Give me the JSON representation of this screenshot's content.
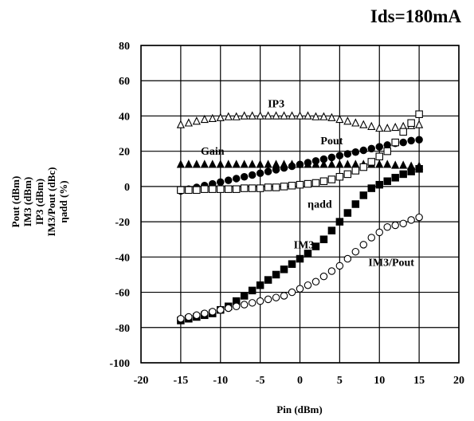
{
  "chart_data": {
    "type": "scatter",
    "title": "Ids=180mA",
    "xlabel": "Pin (dBm)",
    "ylabel_lines": [
      "Pout (dBm)",
      "IM3 (dBm)",
      "IP3 (dBm)",
      "IM3/Pout (dBc)",
      "ηadd (%)"
    ],
    "xlim": [
      -20,
      20
    ],
    "ylim": [
      -100,
      80
    ],
    "xticks": [
      -20,
      -15,
      -10,
      -5,
      0,
      5,
      10,
      15,
      20
    ],
    "yticks": [
      -100,
      -80,
      -60,
      -40,
      -20,
      0,
      20,
      40,
      60,
      80
    ],
    "grid": true,
    "legend": "none",
    "x": [
      -15,
      -14,
      -13,
      -12,
      -11,
      -10,
      -9,
      -8,
      -7,
      -6,
      -5,
      -4,
      -3,
      -2,
      -1,
      0,
      1,
      2,
      3,
      4,
      5,
      6,
      7,
      8,
      9,
      10,
      11,
      12,
      13,
      14,
      15
    ],
    "annotations": [
      {
        "text": "IP3",
        "x": -3,
        "y": 45
      },
      {
        "text": "Gain",
        "x": -11,
        "y": 18
      },
      {
        "text": "Pout",
        "x": 4,
        "y": 24
      },
      {
        "text": "ηadd",
        "x": 2.5,
        "y": -12
      },
      {
        "text": "IM3",
        "x": 0.5,
        "y": -35
      },
      {
        "text": "IM3/Pout",
        "x": 11.5,
        "y": -45
      }
    ],
    "series": [
      {
        "name": "IP3",
        "marker": "triangle-open",
        "values": [
          35,
          36,
          37,
          38,
          38.5,
          39,
          39.5,
          39.5,
          40,
          40,
          40,
          40,
          40,
          40,
          40,
          40,
          40,
          39.5,
          39.5,
          39,
          38,
          37,
          36,
          35,
          34,
          33,
          33,
          33.5,
          34,
          34.5,
          35
        ]
      },
      {
        "name": "Gain",
        "marker": "triangle-filled",
        "values": [
          12.5,
          12.5,
          12.5,
          12.5,
          12.5,
          12.5,
          12.5,
          12.5,
          12.5,
          12.5,
          12.5,
          12.5,
          12.5,
          12.5,
          12.5,
          12.5,
          12.5,
          12.5,
          12.5,
          12.5,
          12.5,
          12.5,
          12.5,
          12.5,
          12.5,
          12.5,
          12.5,
          12,
          12,
          11.5,
          11.5
        ]
      },
      {
        "name": "Pout",
        "marker": "circle-filled",
        "values": [
          -2.5,
          -1.5,
          -0.5,
          0.5,
          1.5,
          2.5,
          3.5,
          4.5,
          5.5,
          6.5,
          7.5,
          8.5,
          9.5,
          10.5,
          11.5,
          12.5,
          13.5,
          14.5,
          15.5,
          16.5,
          17.5,
          18.5,
          19.5,
          20.5,
          21.5,
          22.5,
          23.5,
          24.5,
          25,
          26,
          26.5
        ]
      },
      {
        "name": "ηadd",
        "marker": "square-open",
        "values": [
          -2,
          -2,
          -2,
          -1.5,
          -1.5,
          -1.5,
          -1.5,
          -1.5,
          -1,
          -1,
          -1,
          -0.5,
          -0.5,
          0,
          0.5,
          1,
          1.5,
          2,
          3,
          4,
          5.5,
          7,
          9,
          11,
          14,
          17,
          20,
          25,
          31,
          36,
          41
        ]
      },
      {
        "name": "IM3",
        "marker": "square-filled",
        "values": [
          -76,
          -75,
          -74,
          -73,
          -72,
          -70,
          -68,
          -65,
          -62,
          -59,
          -56,
          -53,
          -50,
          -47,
          -44,
          -41,
          -38,
          -34,
          -30,
          -25,
          -20,
          -15,
          -10,
          -5,
          -1,
          1,
          3,
          5,
          7,
          8.5,
          10
        ]
      },
      {
        "name": "IM3/Pout",
        "marker": "circle-open",
        "values": [
          -75,
          -74,
          -73,
          -72,
          -71,
          -70,
          -69,
          -68,
          -67,
          -66,
          -65,
          -64,
          -63,
          -62,
          -60,
          -58,
          -56,
          -54,
          -51,
          -48,
          -45,
          -41,
          -37,
          -33,
          -29,
          -26,
          -23,
          -22,
          -21,
          -19,
          -17.5
        ]
      }
    ]
  }
}
